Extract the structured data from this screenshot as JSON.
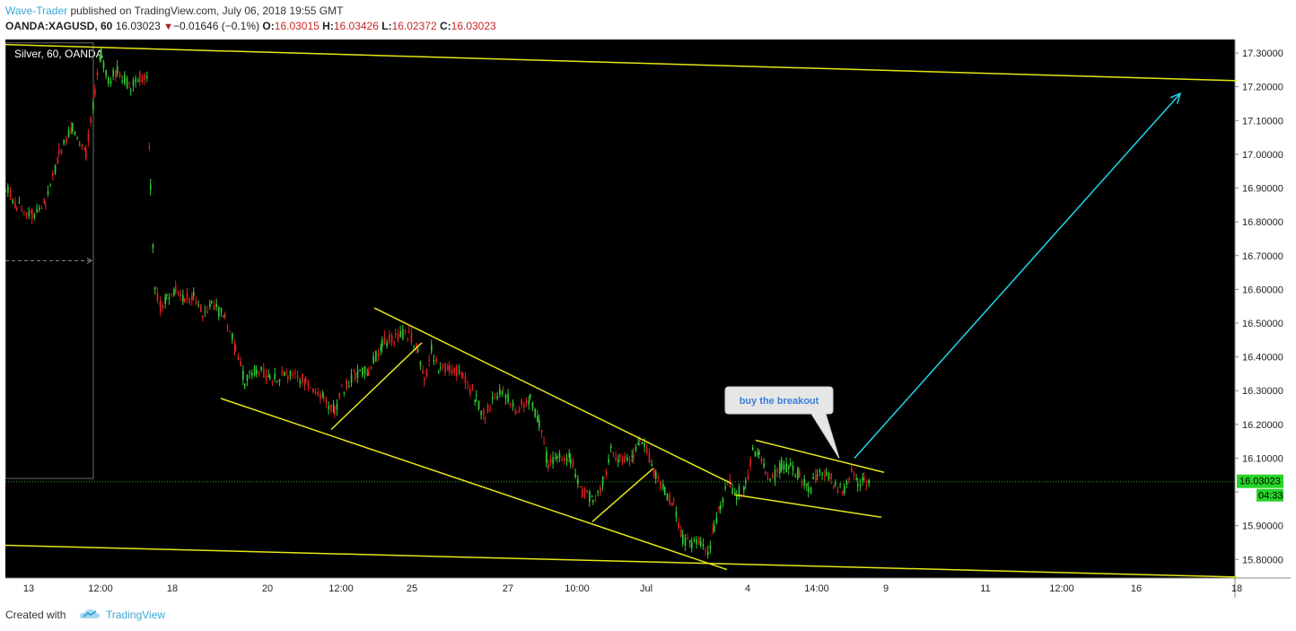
{
  "header": {
    "author": "Wave-Trader",
    "published_text": " published on TradingView.com, July 06, 2018 19:55 GMT",
    "symbol_text": "OANDA:XAGUSD, 60",
    "last_price": "16.03023",
    "change_arrow": "▼",
    "change_text": "−0.01646 (−0.1%)",
    "open_label": "O:",
    "open_value": "16.03015",
    "high_label": "H:",
    "high_value": "16.03426",
    "low_label": "L:",
    "low_value": "16.02372",
    "close_label": "C:",
    "close_value": "16.03023"
  },
  "footer": {
    "created_text": "Created with",
    "brand_text": "TradingView",
    "logo_icon": "tradingview-cloud-icon"
  },
  "colors": {
    "background": "#000000",
    "up_candle": "#33cc33",
    "down_candle": "#e02020",
    "trendline": "#e6e61a",
    "projection_arrow": "#1fd7e6",
    "price_line": "#2aa02a",
    "axis_text": "#222222",
    "price_badge": "#27d427"
  },
  "chart_data": {
    "type": "candlestick",
    "title": "Silver, 60, OANDA",
    "instrument": "OANDA:XAGUSD",
    "interval": "60",
    "y_axis": {
      "position": "right",
      "ylim": [
        15.745,
        17.34
      ],
      "ticks": [
        15.8,
        15.9,
        16.0,
        16.1,
        16.2,
        16.3,
        16.4,
        16.5,
        16.6,
        16.7,
        16.8,
        16.9,
        17.0,
        17.1,
        17.2,
        17.3
      ],
      "tick_labels": [
        "15.80000",
        "15.90000",
        "",
        "16.10000",
        "16.20000",
        "16.30000",
        "16.40000",
        "16.50000",
        "16.60000",
        "16.70000",
        "16.80000",
        "16.90000",
        "17.00000",
        "17.10000",
        "17.20000",
        "17.30000"
      ]
    },
    "x_axis": {
      "ticks": [
        {
          "label": "13",
          "x": 32
        },
        {
          "label": "12:00",
          "x": 112
        },
        {
          "label": "18",
          "x": 192
        },
        {
          "label": "20",
          "x": 298
        },
        {
          "label": "12:00",
          "x": 380
        },
        {
          "label": "25",
          "x": 459
        },
        {
          "label": "27",
          "x": 566
        },
        {
          "label": "10:00",
          "x": 643
        },
        {
          "label": "Jul",
          "x": 720
        },
        {
          "label": "4",
          "x": 833
        },
        {
          "label": "14:00",
          "x": 910
        },
        {
          "label": "9",
          "x": 987
        },
        {
          "label": "11",
          "x": 1098
        },
        {
          "label": "12:00",
          "x": 1183
        },
        {
          "label": "16",
          "x": 1266
        },
        {
          "label": "18",
          "x": 1378
        }
      ]
    },
    "current_price": {
      "value": 16.03023,
      "label": "16.03023",
      "countdown": "04:33"
    },
    "price_anchors": [
      [
        0,
        16.92
      ],
      [
        18,
        16.85
      ],
      [
        35,
        16.82
      ],
      [
        50,
        16.86
      ],
      [
        65,
        17.0
      ],
      [
        80,
        17.08
      ],
      [
        95,
        17.0
      ],
      [
        105,
        17.18
      ],
      [
        112,
        17.3
      ],
      [
        120,
        17.21
      ],
      [
        130,
        17.25
      ],
      [
        145,
        17.2
      ],
      [
        155,
        17.23
      ],
      [
        163,
        17.23
      ],
      [
        167,
        16.9
      ],
      [
        172,
        16.6
      ],
      [
        178,
        16.55
      ],
      [
        185,
        16.57
      ],
      [
        195,
        16.6
      ],
      [
        205,
        16.57
      ],
      [
        215,
        16.58
      ],
      [
        225,
        16.53
      ],
      [
        235,
        16.55
      ],
      [
        250,
        16.52
      ],
      [
        262,
        16.42
      ],
      [
        272,
        16.33
      ],
      [
        285,
        16.36
      ],
      [
        300,
        16.34
      ],
      [
        320,
        16.35
      ],
      [
        340,
        16.33
      ],
      [
        360,
        16.28
      ],
      [
        372,
        16.24
      ],
      [
        380,
        16.3
      ],
      [
        395,
        16.35
      ],
      [
        410,
        16.36
      ],
      [
        425,
        16.44
      ],
      [
        440,
        16.46
      ],
      [
        455,
        16.47
      ],
      [
        465,
        16.42
      ],
      [
        472,
        16.32
      ],
      [
        480,
        16.42
      ],
      [
        490,
        16.36
      ],
      [
        500,
        16.37
      ],
      [
        515,
        16.35
      ],
      [
        530,
        16.27
      ],
      [
        540,
        16.22
      ],
      [
        548,
        16.28
      ],
      [
        560,
        16.3
      ],
      [
        575,
        16.25
      ],
      [
        590,
        16.28
      ],
      [
        600,
        16.2
      ],
      [
        610,
        16.08
      ],
      [
        620,
        16.1
      ],
      [
        635,
        16.1
      ],
      [
        648,
        16.0
      ],
      [
        660,
        15.98
      ],
      [
        672,
        16.03
      ],
      [
        680,
        16.12
      ],
      [
        690,
        16.1
      ],
      [
        705,
        16.1
      ],
      [
        712,
        16.15
      ],
      [
        720,
        16.12
      ],
      [
        730,
        16.05
      ],
      [
        740,
        16.0
      ],
      [
        750,
        15.96
      ],
      [
        760,
        15.86
      ],
      [
        770,
        15.84
      ],
      [
        780,
        15.85
      ],
      [
        788,
        15.81
      ],
      [
        795,
        15.9
      ],
      [
        802,
        15.96
      ],
      [
        810,
        16.03
      ],
      [
        820,
        15.99
      ],
      [
        830,
        16.02
      ],
      [
        838,
        16.12
      ],
      [
        845,
        16.12
      ],
      [
        852,
        16.06
      ],
      [
        860,
        16.04
      ],
      [
        870,
        16.08
      ],
      [
        880,
        16.07
      ],
      [
        890,
        16.05
      ],
      [
        900,
        16.0
      ],
      [
        910,
        16.05
      ],
      [
        920,
        16.06
      ],
      [
        930,
        16.02
      ],
      [
        940,
        16.0
      ],
      [
        948,
        16.06
      ],
      [
        955,
        16.02
      ],
      [
        962,
        16.03
      ],
      [
        970,
        16.03
      ]
    ],
    "annotations": {
      "trendlines": [
        {
          "name": "upper-channel",
          "from": [
            6,
            17.325
          ],
          "to": [
            1378,
            17.218
          ]
        },
        {
          "name": "lower-channel",
          "from": [
            6,
            15.842
          ],
          "to": [
            1378,
            15.748
          ]
        },
        {
          "name": "falling-channel-top",
          "from": [
            417,
            16.545
          ],
          "to": [
            815,
            16.025
          ]
        },
        {
          "name": "falling-channel-bottom",
          "from": [
            246,
            16.277
          ],
          "to": [
            810,
            15.77
          ]
        },
        {
          "name": "rising-segment-1",
          "from": [
            369,
            16.185
          ],
          "to": [
            470,
            16.442
          ]
        },
        {
          "name": "rising-segment-2",
          "from": [
            660,
            15.912
          ],
          "to": [
            728,
            16.07
          ]
        },
        {
          "name": "flag-top",
          "from": [
            842,
            16.153
          ],
          "to": [
            985,
            16.058
          ]
        },
        {
          "name": "flag-bottom",
          "from": [
            818,
            15.992
          ],
          "to": [
            982,
            15.925
          ]
        }
      ],
      "arrow": {
        "from": [
          952,
          16.1
        ],
        "to": [
          1315,
          17.18
        ]
      },
      "callout": {
        "text": "buy the breakout",
        "pointer_to": [
          935,
          16.1
        ]
      },
      "range_box": {
        "from_x": 6,
        "to_x": 104,
        "top": 17.33,
        "bottom": 16.04,
        "mid_line": 16.685
      }
    }
  }
}
